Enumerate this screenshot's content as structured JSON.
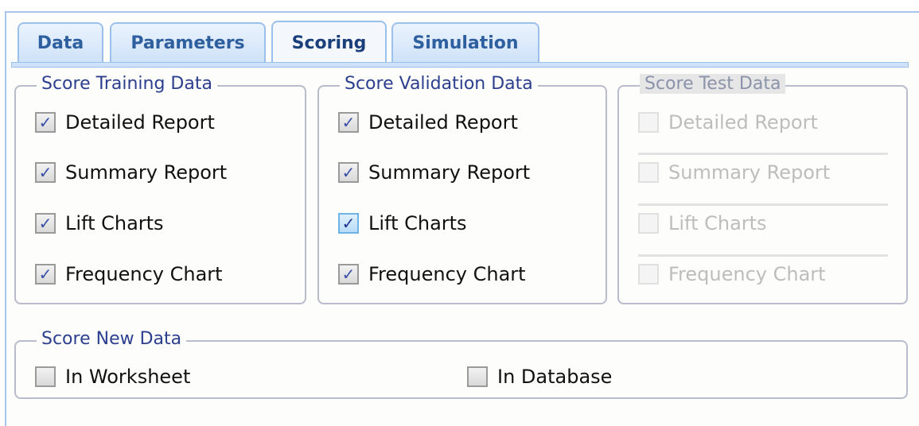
{
  "tabs": [
    {
      "label": "Data"
    },
    {
      "label": "Parameters"
    },
    {
      "label": "Scoring",
      "active": true
    },
    {
      "label": "Simulation"
    }
  ],
  "groups": {
    "training": {
      "title": "Score Training Data",
      "items": [
        {
          "label": "Detailed Report",
          "checked": true
        },
        {
          "label": "Summary Report",
          "checked": true
        },
        {
          "label": "Lift Charts",
          "checked": true
        },
        {
          "label": "Frequency Chart",
          "checked": true
        }
      ]
    },
    "validation": {
      "title": "Score Validation Data",
      "items": [
        {
          "label": "Detailed Report",
          "checked": true
        },
        {
          "label": "Summary Report",
          "checked": true
        },
        {
          "label": "Lift Charts",
          "checked": true,
          "focused": true
        },
        {
          "label": "Frequency Chart",
          "checked": true
        }
      ]
    },
    "test": {
      "title": "Score Test Data",
      "disabled": true,
      "items": [
        {
          "label": "Detailed Report",
          "checked": false
        },
        {
          "label": "Summary Report",
          "checked": false
        },
        {
          "label": "Lift Charts",
          "checked": false
        },
        {
          "label": "Frequency Chart",
          "checked": false
        }
      ]
    },
    "new_data": {
      "title": "Score New Data",
      "items": [
        {
          "label": "In Worksheet",
          "checked": false
        },
        {
          "label": "In Database",
          "checked": false
        }
      ]
    }
  },
  "check_glyph": "✓",
  "colors": {
    "tab_border": "#9cc0ec",
    "legend_text": "#2b3f8e",
    "tab_text": "#2e5f9e"
  }
}
